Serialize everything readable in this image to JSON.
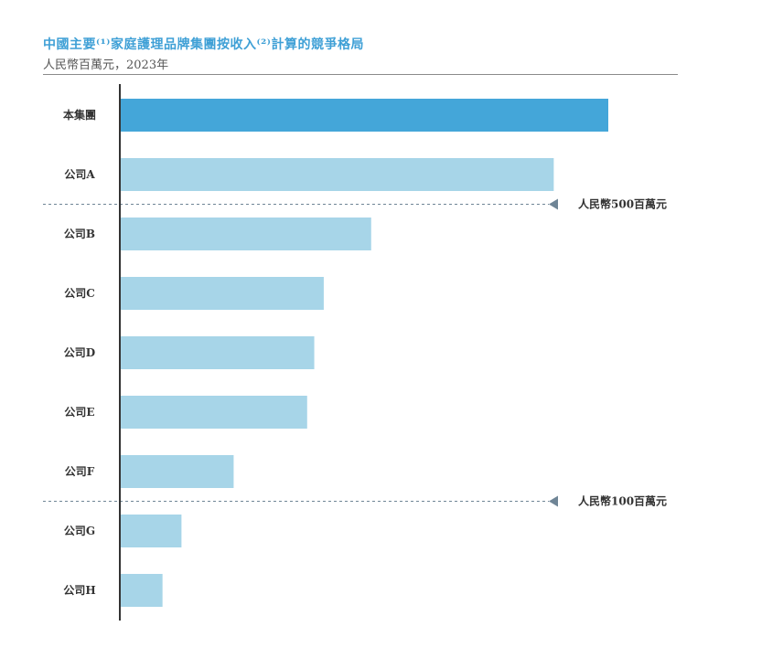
{
  "header": {
    "title": "中國主要⁽¹⁾家庭護理品牌集團按收入⁽²⁾計算的競爭格局",
    "subtitle": "人民幣百萬元，2023年"
  },
  "colors": {
    "highlight_bar": "#44a6d9",
    "bar": "#a7d5e8",
    "axis": "#333333",
    "reference_line": "#6f8596"
  },
  "chart_data": {
    "type": "bar",
    "orientation": "horizontal",
    "title": "中國主要⁽¹⁾家庭護理品牌集團按收入⁽²⁾計算的競爭格局",
    "subtitle": "人民幣百萬元，2023年",
    "categories": [
      "本集團",
      "公司A",
      "公司B",
      "公司C",
      "公司D",
      "公司E",
      "公司F",
      "公司G",
      "公司H"
    ],
    "values": [
      1030,
      915,
      530,
      430,
      410,
      395,
      240,
      130,
      90
    ],
    "highlight_index": 0,
    "xlim": [
      0,
      1300
    ],
    "grid": false,
    "reference_lines": [
      {
        "label": "人民幣500百萬元",
        "between": [
          1,
          2
        ]
      },
      {
        "label": "人民幣100百萬元",
        "between": [
          6,
          7
        ]
      }
    ]
  }
}
